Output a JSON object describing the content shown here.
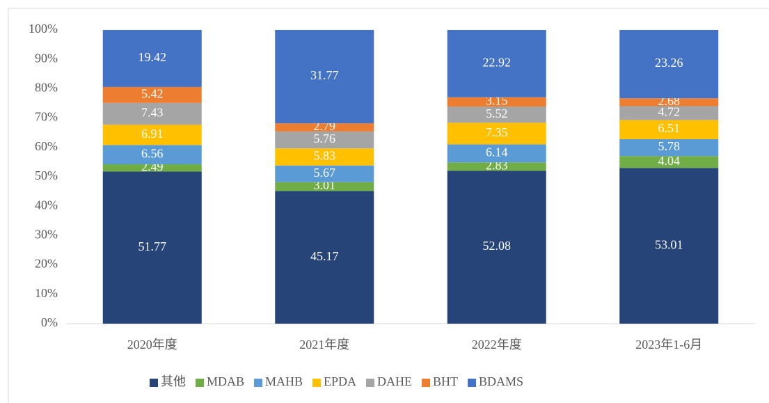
{
  "chart_data": {
    "type": "stacked_bar",
    "categories": [
      "2020年度",
      "2021年度",
      "2022年度",
      "2023年1-6月"
    ],
    "series": [
      {
        "name": "其他",
        "color": "#264478",
        "values": [
          51.77,
          45.17,
          52.08,
          53.01
        ]
      },
      {
        "name": "MDAB",
        "color": "#70ad47",
        "values": [
          2.49,
          3.01,
          2.83,
          4.04
        ]
      },
      {
        "name": "MAHB",
        "color": "#5b9bd5",
        "values": [
          6.56,
          5.67,
          6.14,
          5.78
        ]
      },
      {
        "name": "EPDA",
        "color": "#ffc000",
        "values": [
          6.91,
          5.83,
          7.35,
          6.51
        ]
      },
      {
        "name": "DAHE",
        "color": "#a5a5a5",
        "values": [
          7.43,
          5.76,
          5.52,
          4.72
        ]
      },
      {
        "name": "BHT",
        "color": "#ed7d31",
        "values": [
          5.42,
          2.79,
          3.15,
          2.68
        ]
      },
      {
        "name": "BDAMS",
        "color": "#4472c4",
        "values": [
          19.42,
          31.77,
          22.92,
          23.26
        ]
      }
    ],
    "ylim": [
      0,
      100
    ],
    "yticks": [
      {
        "value": 0,
        "label": "0%"
      },
      {
        "value": 10,
        "label": "10%"
      },
      {
        "value": 20,
        "label": "20%"
      },
      {
        "value": 30,
        "label": "30%"
      },
      {
        "value": 40,
        "label": "40%"
      },
      {
        "value": 50,
        "label": "50%"
      },
      {
        "value": 60,
        "label": "60%"
      },
      {
        "value": 70,
        "label": "70%"
      },
      {
        "value": 80,
        "label": "80%"
      },
      {
        "value": 90,
        "label": "90%"
      },
      {
        "value": 100,
        "label": "100%"
      }
    ],
    "legend": "bottom"
  }
}
